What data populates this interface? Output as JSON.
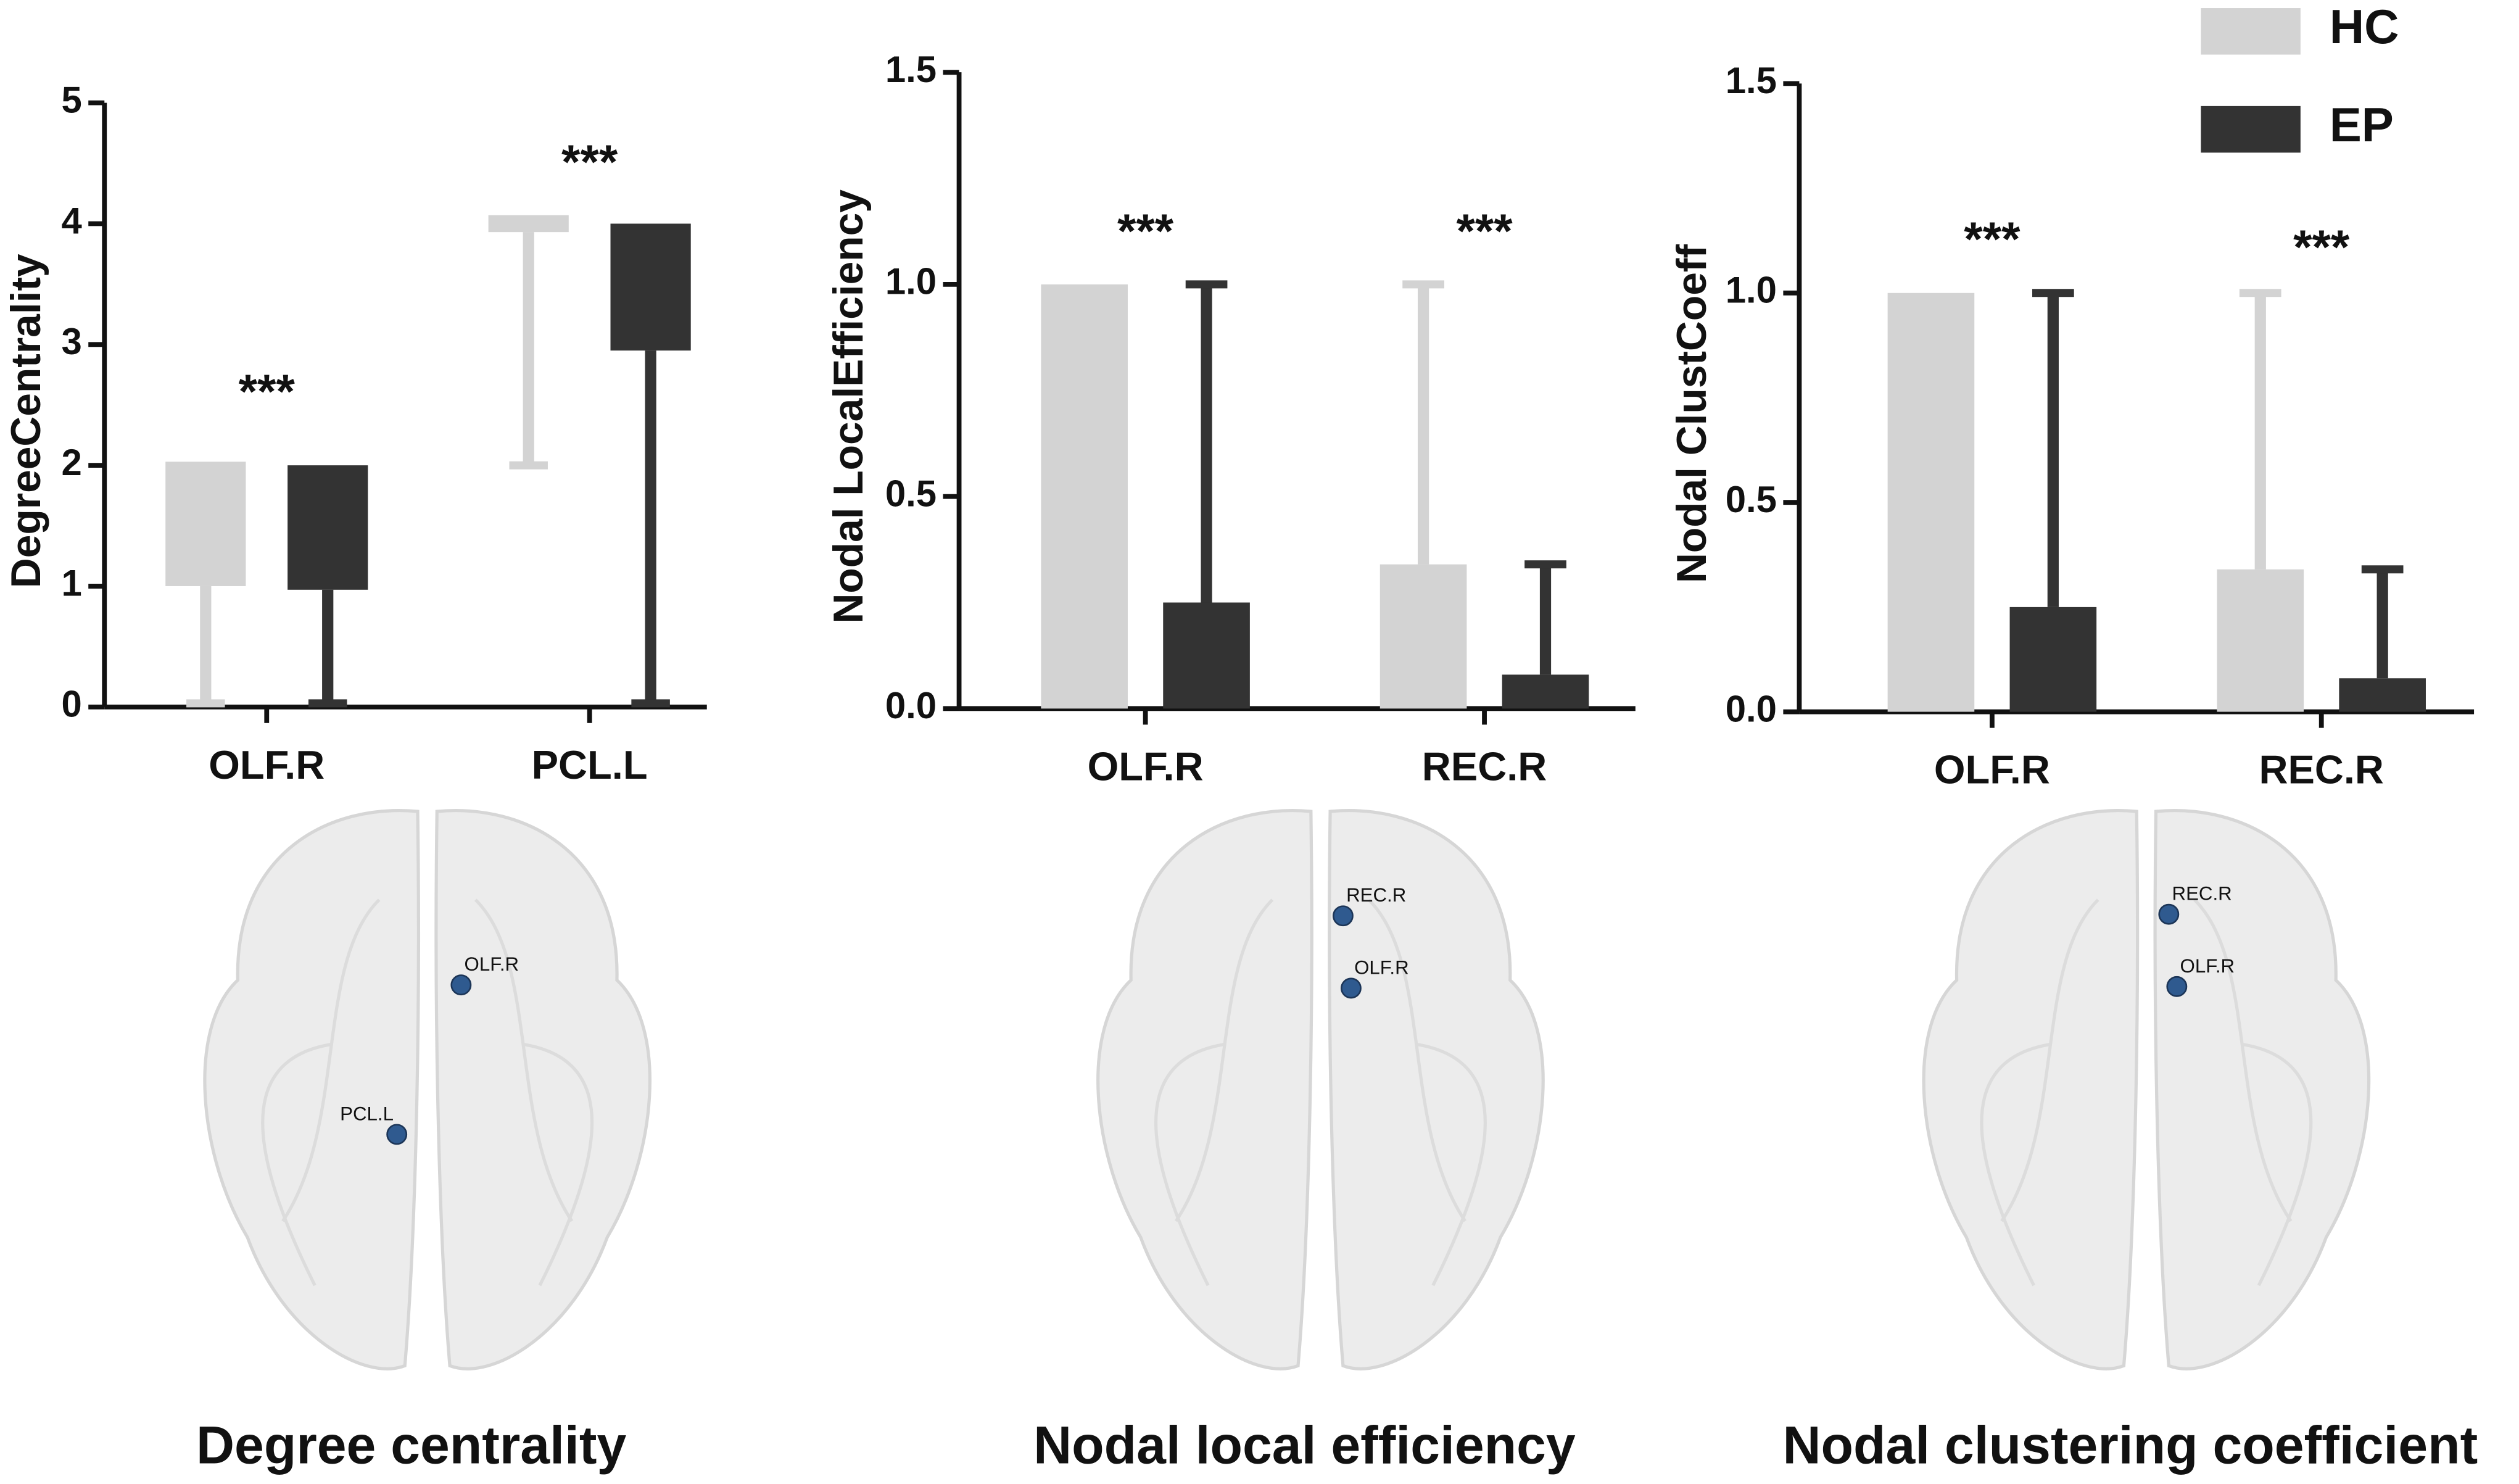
{
  "chart_data": [
    {
      "type": "box",
      "ylabel": "DegreeCentrality",
      "categories": [
        "OLF.R",
        "PCL.L"
      ],
      "ylim": [
        0,
        5
      ],
      "yticks": [
        0,
        1,
        2,
        3,
        4,
        5
      ],
      "series": [
        {
          "name": "HC",
          "color": "#d3d3d3",
          "lower": [
            1,
            3.93
          ],
          "upper": [
            2.03,
            4.07
          ],
          "whisker_min": [
            0.03,
            2
          ]
        },
        {
          "name": "EP",
          "color": "#333333",
          "lower": [
            0.97,
            2.95
          ],
          "upper": [
            2,
            4
          ],
          "whisker_min": [
            0.03,
            0.03
          ]
        }
      ],
      "annotations": [
        "***",
        "***"
      ],
      "brain_nodes": [
        "OLF.R",
        "PCL.L"
      ],
      "caption": "Degree centrality"
    },
    {
      "type": "bar",
      "ylabel": "Nodal LocalEfficiency",
      "categories": [
        "OLF.R",
        "REC.R"
      ],
      "ylim": [
        0,
        1.5
      ],
      "yticks": [
        {
          "value": 0,
          "label": "0.0"
        },
        0.5,
        {
          "value": 1,
          "label": "1.0"
        },
        1.5
      ],
      "series": [
        {
          "name": "HC",
          "color": "#d3d3d3",
          "values": [
            1,
            0.34
          ],
          "errors": [
            0,
            0.66
          ]
        },
        {
          "name": "EP",
          "color": "#333333",
          "values": [
            0.25,
            0.08
          ],
          "errors": [
            0.75,
            0.26
          ]
        }
      ],
      "annotations": [
        "***",
        "***"
      ],
      "brain_nodes": [
        "REC.R",
        "OLF.R"
      ],
      "caption": "Nodal local efficiency"
    },
    {
      "type": "bar",
      "ylabel": "Nodal ClustCoeff",
      "categories": [
        "OLF.R",
        "REC.R"
      ],
      "ylim": [
        0,
        1.5
      ],
      "yticks": [
        {
          "value": 0,
          "label": "0.0"
        },
        0.5,
        {
          "value": 1,
          "label": "1.0"
        },
        1.5
      ],
      "series": [
        {
          "name": "HC",
          "color": "#d3d3d3",
          "values": [
            1,
            0.34
          ],
          "errors": [
            0,
            0.66
          ]
        },
        {
          "name": "EP",
          "color": "#333333",
          "values": [
            0.25,
            0.08
          ],
          "errors": [
            0.75,
            0.26
          ]
        }
      ],
      "annotations": [
        "***",
        "***"
      ],
      "legend": true,
      "brain_nodes": [
        "REC.R",
        "OLF.R"
      ],
      "caption": "Nodal clustering coefficient"
    }
  ]
}
